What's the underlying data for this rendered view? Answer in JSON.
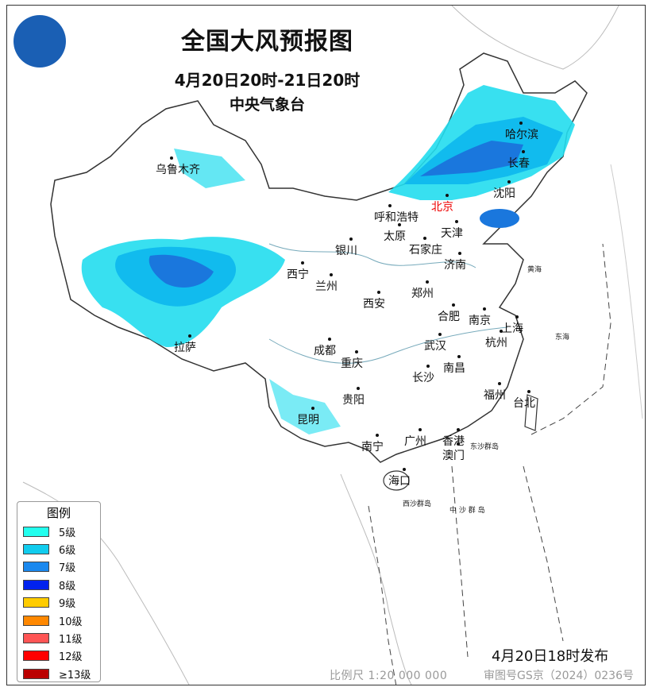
{
  "header": {
    "title": "全国大风预报图",
    "period": "4月20日20时-21日20时",
    "issuer": "中央气象台"
  },
  "legend": {
    "title": "图例",
    "items": [
      {
        "label": "5级",
        "color": "#22ffee"
      },
      {
        "label": "6级",
        "color": "#11ccee"
      },
      {
        "label": "7级",
        "color": "#1a88ee"
      },
      {
        "label": "8级",
        "color": "#0022ee"
      },
      {
        "label": "9级",
        "color": "#ffcc00"
      },
      {
        "label": "10级",
        "color": "#ff8800"
      },
      {
        "label": "11级",
        "color": "#ff5555"
      },
      {
        "label": "12级",
        "color": "#ff0000"
      },
      {
        "label": "≥13级",
        "color": "#bb0000"
      }
    ]
  },
  "cities": [
    "乌鲁木齐",
    "哈尔滨",
    "长春",
    "沈阳",
    "北京",
    "呼和浩特",
    "天津",
    "太原",
    "石家庄",
    "银川",
    "济南",
    "西宁",
    "兰州",
    "郑州",
    "西安",
    "合肥",
    "南京",
    "上海",
    "拉萨",
    "成都",
    "武汉",
    "杭州",
    "重庆",
    "长沙",
    "南昌",
    "福州",
    "台北",
    "贵阳",
    "昆明",
    "南宁",
    "广州",
    "香港",
    "澳门",
    "海口"
  ],
  "islands": [
    "东沙群岛",
    "西沙群岛",
    "中 沙 群 岛",
    "黄海",
    "东海"
  ],
  "footer": {
    "issue_time": "4月20日18时发布",
    "scale": "比例尺 1:20 000 000",
    "review_no": "审图号GS京（2024）0236号"
  },
  "colors": {
    "capital": "#e00000",
    "border": "#333333"
  }
}
